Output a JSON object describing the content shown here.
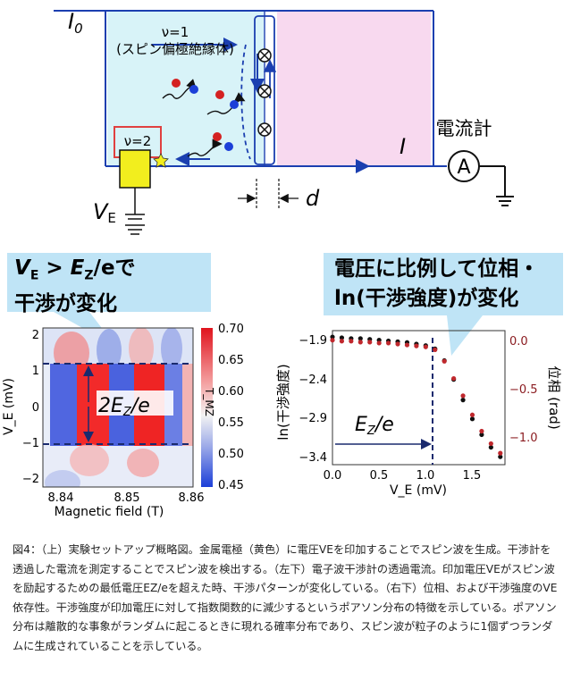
{
  "schematic": {
    "i0_label": "I",
    "i0_sub": "0",
    "nu1_label": "ν=1",
    "nu1_desc": "(スピン偏極絶縁体)",
    "nu2_label": "ν=2",
    "ammeter_label": "電流計",
    "ammeter_symbol": "A",
    "current_label": "I",
    "ve_label": "V",
    "ve_sub": "E",
    "d_label": "d",
    "colors": {
      "cyan_region": "#d8f3f8",
      "pink_region": "#f8d9ef",
      "electrode": "#f2ee1e",
      "line": "#1b3fb0"
    }
  },
  "callouts": {
    "left_line1": "V",
    "left_line1_sub": "E",
    "left_line1_mid": " > E",
    "left_line1_sub2": "Z",
    "left_line1_end": "/eで",
    "left_line2": "干渉が変化",
    "right_line1": "電圧に比例して位相・",
    "right_line2": "ln(干渉強度)が変化"
  },
  "chart_data": [
    {
      "type": "heatmap",
      "xlabel": "Magnetic field (T)",
      "ylabel": "V_E (mV)",
      "x_ticks": [
        "8.84",
        "8.85",
        "8.86"
      ],
      "y_ticks": [
        "2",
        "1",
        "0",
        "−1",
        "−2"
      ],
      "xlim": [
        8.835,
        8.86
      ],
      "ylim": [
        -2.3,
        2.3
      ],
      "colorbar_label": "T_MZ",
      "colorbar_ticks": [
        "0.70",
        "0.65",
        "0.60",
        "0.55",
        "0.50",
        "0.45"
      ],
      "colorbar_range": [
        0.45,
        0.7
      ],
      "dashed_lines_y": [
        1.2,
        -1.0
      ],
      "annotation": "2E",
      "annotation_sub": "Z",
      "annotation_end": "/e"
    },
    {
      "type": "scatter",
      "xlabel": "V_E (mV)",
      "ylabel_left": "ln(干渉強度)",
      "ylabel_right": "位相 (rad)",
      "x_ticks": [
        "0.0",
        "0.5",
        "1.0",
        "1.5"
      ],
      "y_left_ticks": [
        "−1.9",
        "−2.4",
        "−2.9",
        "−3.4"
      ],
      "y_right_ticks": [
        "0.0",
        "−0.5",
        "−1.0"
      ],
      "xlim": [
        0,
        1.85
      ],
      "ylim_left": [
        -3.5,
        -1.8
      ],
      "ylim_right": [
        -1.3,
        0.1
      ],
      "threshold_x": 1.1,
      "annotation": "E",
      "annotation_sub": "Z",
      "annotation_end": "/e",
      "series": [
        {
          "name": "",
          "color": "#111111",
          "x": [
            0.0,
            0.1,
            0.2,
            0.3,
            0.4,
            0.5,
            0.6,
            0.7,
            0.8,
            0.9,
            1.0,
            1.1,
            1.2,
            1.3,
            1.4,
            1.5,
            1.6,
            1.7,
            1.8
          ],
          "y": [
            -1.88,
            -1.89,
            -1.9,
            -1.9,
            -1.91,
            -1.92,
            -1.93,
            -1.94,
            -1.95,
            -1.97,
            -1.99,
            -2.03,
            -2.18,
            -2.42,
            -2.68,
            -2.92,
            -3.12,
            -3.28,
            -3.4
          ]
        },
        {
          "name": "",
          "color": "#c0282d",
          "x": [
            0.0,
            0.1,
            0.2,
            0.3,
            0.4,
            0.5,
            0.6,
            0.7,
            0.8,
            0.9,
            1.0,
            1.1,
            1.2,
            1.3,
            1.4,
            1.5,
            1.6,
            1.7,
            1.8
          ],
          "y": [
            0.0,
            -0.01,
            -0.01,
            -0.02,
            -0.02,
            -0.03,
            -0.03,
            -0.04,
            -0.05,
            -0.06,
            -0.07,
            -0.1,
            -0.22,
            -0.4,
            -0.58,
            -0.78,
            -0.95,
            -1.08,
            -1.18
          ]
        }
      ]
    }
  ],
  "caption": "図4：（上）実験セットアップ概略図。金属電極（黄色）に電圧VEを印加することでスピン波を生成。干渉計を透過した電流を測定することでスピン波を検出する。（左下）電子波干渉計の透過電流。印加電圧VEがスピン波を励起するための最低電圧EZ/eを超えた時、干渉パターンが変化している。（右下）位相、および干渉強度のVE依存性。干渉強度が印加電圧に対して指数関数的に減少するというポアソン分布の特徴を示している。ポアソン分布は離散的な事象がランダムに起こるときに現れる確率分布であり、スピン波が粒子のように1個ずつランダムに生成されていることを示している。"
}
